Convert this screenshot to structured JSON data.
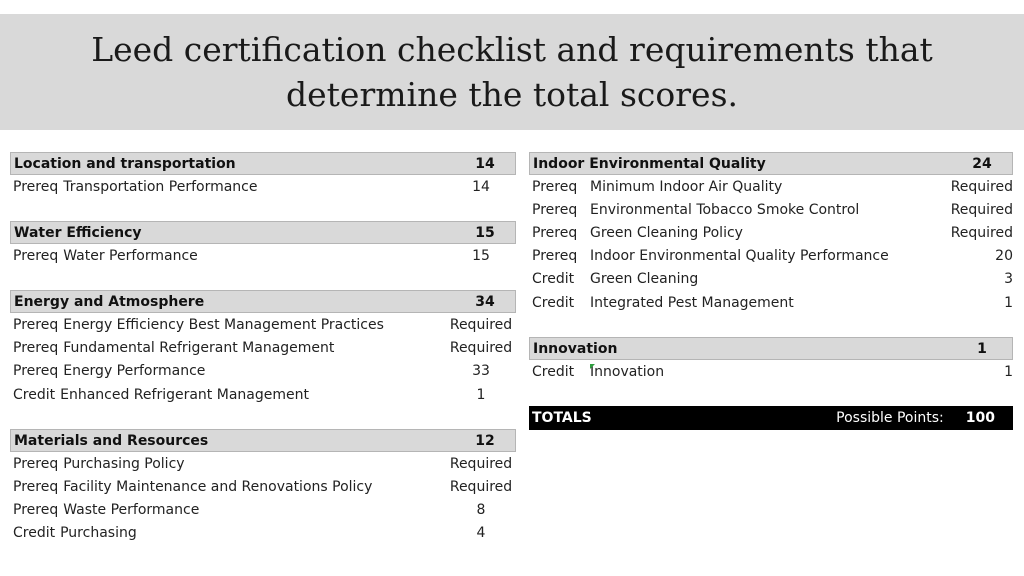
{
  "title": "Leed certification checklist and requirements that determine the total scores.",
  "left_sections": [
    {
      "name": "Location and transportation",
      "points": "14",
      "items": [
        {
          "type": "Prereq",
          "label": "Transportation Performance",
          "value": "14"
        }
      ]
    },
    {
      "name": "Water Efficiency",
      "points": "15",
      "items": [
        {
          "type": "Prereq",
          "label": "Water Performance",
          "value": "15"
        }
      ]
    },
    {
      "name": "Energy and Atmosphere",
      "points": "34",
      "items": [
        {
          "type": "Prereq",
          "label": "Energy Efficiency Best Management Practices",
          "value": "Required"
        },
        {
          "type": "Prereq",
          "label": "Fundamental Refrigerant Management",
          "value": "Required"
        },
        {
          "type": "Prereq",
          "label": "Energy Performance",
          "value": "33"
        },
        {
          "type": "Credit",
          "label": "Enhanced Refrigerant Management",
          "value": "1"
        }
      ]
    },
    {
      "name": "Materials and Resources",
      "points": "12",
      "items": [
        {
          "type": "Prereq",
          "label": "Purchasing Policy",
          "value": "Required"
        },
        {
          "type": "Prereq",
          "label": "Facility Maintenance and Renovations Policy",
          "value": "Required"
        },
        {
          "type": "Prereq",
          "label": "Waste Performance",
          "value": "8"
        },
        {
          "type": "Credit",
          "label": "Purchasing",
          "value": "4"
        }
      ]
    }
  ],
  "right_sections": [
    {
      "name": "Indoor Environmental Quality",
      "points": "24",
      "items": [
        {
          "type": "Prereq",
          "label": "Minimum Indoor Air Quality",
          "value": "Required"
        },
        {
          "type": "Prereq",
          "label": "Environmental Tobacco Smoke Control",
          "value": "Required"
        },
        {
          "type": "Prereq",
          "label": "Green Cleaning Policy",
          "value": "Required"
        },
        {
          "type": "Prereq",
          "label": "Indoor Environmental Quality Performance",
          "value": "20"
        },
        {
          "type": "Credit",
          "label": "Green Cleaning",
          "value": "3"
        },
        {
          "type": "Credit",
          "label": "Integrated Pest Management",
          "value": "1"
        }
      ]
    },
    {
      "name": "Innovation",
      "points": "1",
      "items": [
        {
          "type": "Credit",
          "label": "Innovation",
          "value": "1"
        }
      ]
    }
  ],
  "totals": {
    "label": "TOTALS",
    "possible_label": "Possible Points:",
    "possible_value": "100"
  },
  "colors": {
    "header_band": "#d9d9d9",
    "section_header": "#d9d9d9",
    "totals_bar": "#000000",
    "comment_marker": "#2e9e3f"
  }
}
